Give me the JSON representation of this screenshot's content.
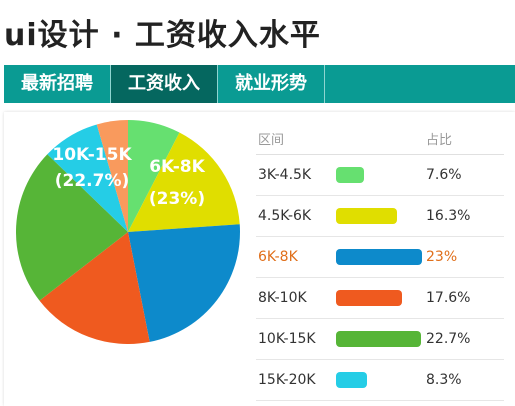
{
  "page": {
    "title": "ui设计 · 工资收入水平"
  },
  "tabs": [
    {
      "label": "最新招聘",
      "active": false
    },
    {
      "label": "工资收入",
      "active": true
    },
    {
      "label": "就业形势",
      "active": false
    }
  ],
  "table": {
    "headers": [
      "区间",
      "占比"
    ],
    "rows": [
      {
        "range": "3K-4.5K",
        "pct": "7.6%",
        "color": "#66e070",
        "highlight": false
      },
      {
        "range": "4.5K-6K",
        "pct": "16.3%",
        "color": "#e0de00",
        "highlight": false
      },
      {
        "range": "6K-8K",
        "pct": "23%",
        "color": "#0d8acb",
        "highlight": true
      },
      {
        "range": "8K-10K",
        "pct": "17.6%",
        "color": "#ef5a1f",
        "highlight": false
      },
      {
        "range": "10K-15K",
        "pct": "22.7%",
        "color": "#56b537",
        "highlight": false
      },
      {
        "range": "15K-20K",
        "pct": "8.3%",
        "color": "#25cde6",
        "highlight": false
      }
    ]
  },
  "chart_data": {
    "type": "pie",
    "categories": [
      "3K-4.5K",
      "4.5K-6K",
      "6K-8K",
      "8K-10K",
      "10K-15K",
      "15K-20K",
      ""
    ],
    "values": [
      7.6,
      16.3,
      23,
      17.6,
      22.7,
      8.3,
      4.5
    ],
    "colors": [
      "#66e070",
      "#e0de00",
      "#0d8acb",
      "#ef5a1f",
      "#56b537",
      "#25cde6",
      "#f99a5d"
    ],
    "labels": [
      {
        "range": "6K-8K",
        "pct": "(23%)"
      },
      {
        "range": "10K-15K",
        "pct": "(22.7%)"
      }
    ]
  }
}
